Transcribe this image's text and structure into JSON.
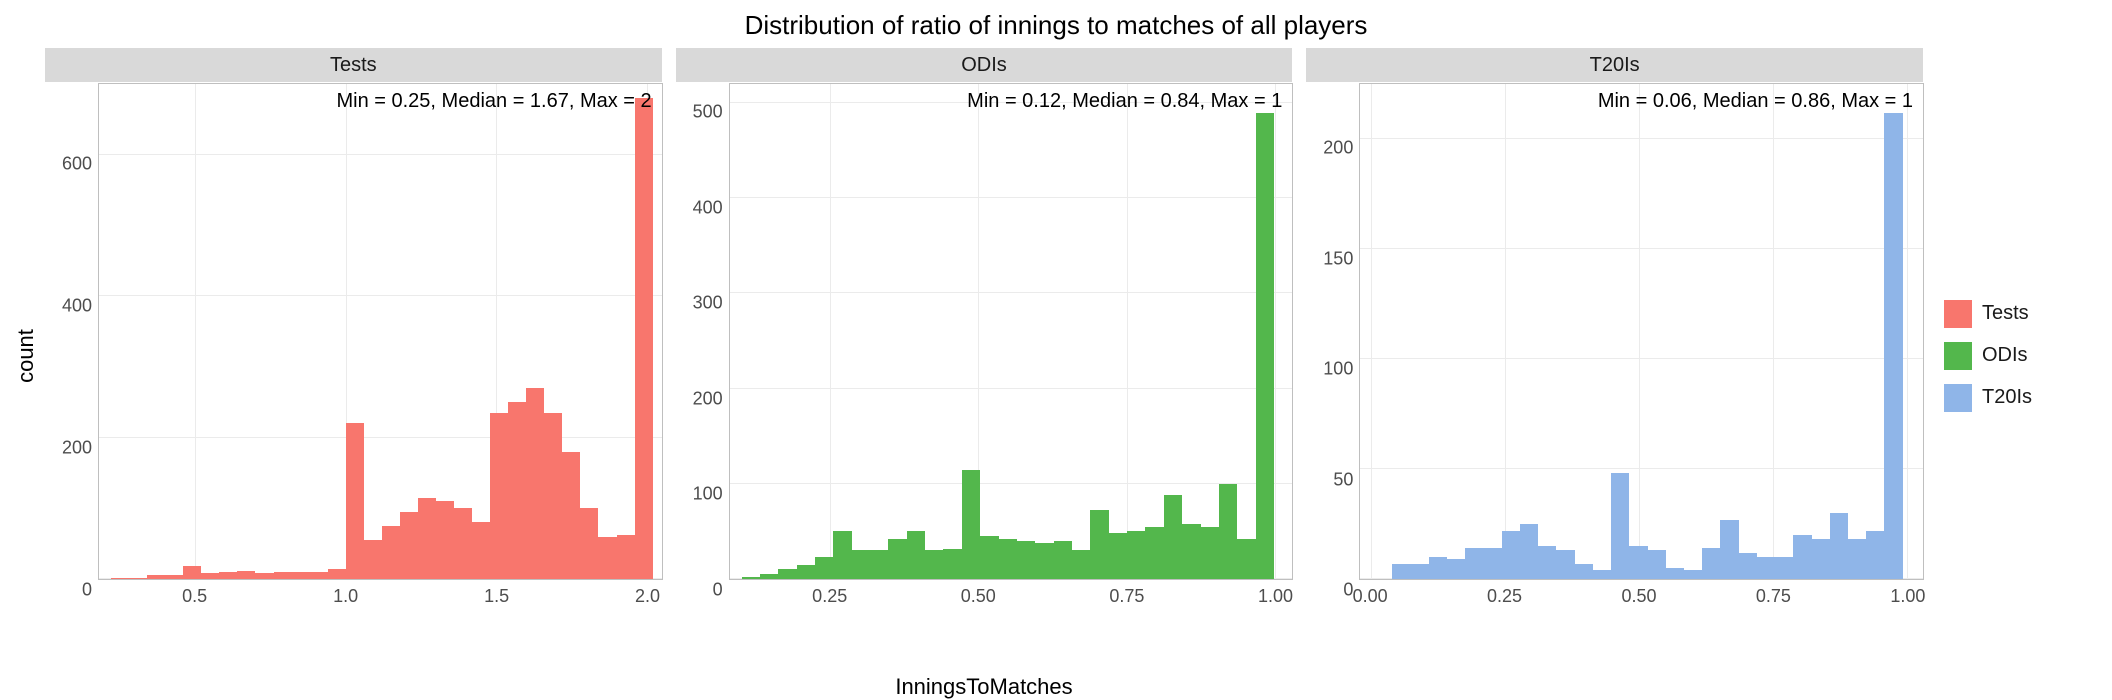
{
  "title": "Distribution of ratio of innings to matches of all players",
  "x_label": "InningsToMatches",
  "y_label": "count",
  "background_color": "#ffffff",
  "grid_color": "#ebebeb",
  "panel_border_color": "#bfbfbf",
  "strip_background": "#d9d9d9",
  "title_fontsize": 26,
  "label_fontsize": 22,
  "tick_fontsize": 18,
  "strip_fontsize": 20,
  "annot_fontsize": 20,
  "legend": {
    "items": [
      {
        "label": "Tests",
        "color": "#f8766d"
      },
      {
        "label": "ODIs",
        "color": "#53b74c"
      },
      {
        "label": "T20Is",
        "color": "#8fb5e8"
      }
    ]
  },
  "facets": [
    {
      "name": "Tests",
      "color": "#f8766d",
      "annotation": "Min = 0.25, Median = 1.67, Max = 2",
      "xlim": [
        0.18,
        2.05
      ],
      "ylim": [
        0,
        700
      ],
      "x_ticks": [
        0.5,
        1.0,
        1.5,
        2.0
      ],
      "x_tick_labels": [
        "0.5",
        "1.0",
        "1.5",
        "2.0"
      ],
      "y_ticks": [
        0,
        200,
        400,
        600
      ],
      "bins": {
        "start": 0.22,
        "width": 0.06,
        "counts": [
          2,
          2,
          5,
          5,
          18,
          8,
          10,
          12,
          8,
          10,
          10,
          10,
          14,
          220,
          55,
          75,
          95,
          115,
          110,
          100,
          80,
          235,
          250,
          270,
          235,
          180,
          100,
          60,
          62,
          680
        ]
      }
    },
    {
      "name": "ODIs",
      "color": "#53b74c",
      "annotation": "Min = 0.12, Median = 0.84, Max = 1",
      "xlim": [
        0.08,
        1.03
      ],
      "ylim": [
        0,
        520
      ],
      "x_ticks": [
        0.25,
        0.5,
        0.75,
        1.0
      ],
      "x_tick_labels": [
        "0.25",
        "0.50",
        "0.75",
        "1.00"
      ],
      "y_ticks": [
        0,
        100,
        200,
        300,
        400,
        500
      ],
      "bins": {
        "start": 0.1,
        "width": 0.031,
        "counts": [
          2,
          5,
          10,
          15,
          23,
          50,
          30,
          30,
          42,
          50,
          30,
          32,
          115,
          45,
          42,
          40,
          38,
          40,
          30,
          72,
          48,
          50,
          55,
          88,
          58,
          55,
          100,
          42,
          490
        ]
      }
    },
    {
      "name": "T20Is",
      "color": "#8fb5e8",
      "annotation": "Min = 0.06, Median = 0.86, Max = 1",
      "xlim": [
        -0.02,
        1.03
      ],
      "ylim": [
        0,
        225
      ],
      "x_ticks": [
        0.0,
        0.25,
        0.5,
        0.75,
        1.0
      ],
      "x_tick_labels": [
        "0.00",
        "0.25",
        "0.50",
        "0.75",
        "1.00"
      ],
      "y_ticks": [
        0,
        50,
        100,
        150,
        200
      ],
      "bins": {
        "start": 0.04,
        "width": 0.034,
        "counts": [
          7,
          7,
          10,
          9,
          14,
          14,
          22,
          25,
          15,
          13,
          7,
          4,
          48,
          15,
          13,
          5,
          4,
          14,
          27,
          12,
          10,
          10,
          20,
          18,
          30,
          18,
          22,
          212
        ]
      }
    }
  ]
}
